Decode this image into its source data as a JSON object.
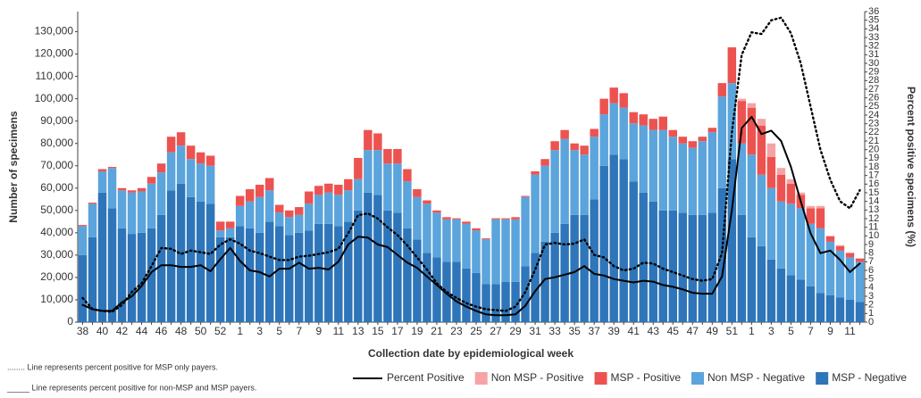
{
  "chart_data": {
    "type": "bar",
    "x_label": "Collection date by epidemiological week",
    "y_label": "Number of specimens",
    "y2_label": "Percent positive specimens (%)",
    "stacked": true,
    "categories": [
      "38",
      null,
      "40",
      null,
      "42",
      null,
      "44",
      null,
      "46",
      null,
      "48",
      null,
      "50",
      null,
      "52",
      null,
      "1",
      null,
      "3",
      null,
      "5",
      null,
      "7",
      null,
      "9",
      null,
      "11",
      null,
      "13",
      null,
      "15",
      null,
      "17",
      null,
      "19",
      null,
      "21",
      null,
      "23",
      null,
      "25",
      null,
      "27",
      null,
      "29",
      null,
      "31",
      null,
      "33",
      null,
      "35",
      null,
      "37",
      null,
      "39",
      null,
      "41",
      null,
      "43",
      null,
      "45",
      null,
      "47",
      null,
      "49",
      null,
      "51",
      null,
      "1",
      null,
      "3",
      null,
      "5",
      null,
      "7",
      null,
      "9",
      null,
      "11",
      null
    ],
    "ylim": [
      0,
      139000
    ],
    "yticks": [
      0,
      {
        "value": 10000,
        "label": "10,000"
      },
      {
        "value": 20000,
        "label": "20,000"
      },
      {
        "value": 30000,
        "label": "30,000"
      },
      {
        "value": 40000,
        "label": "40,000"
      },
      {
        "value": 50000,
        "label": "50,000"
      },
      {
        "value": 60000,
        "label": "60,000"
      },
      {
        "value": 70000,
        "label": "70,000"
      },
      {
        "value": 80000,
        "label": "80,000"
      },
      {
        "value": 90000,
        "label": "90,000"
      },
      {
        "value": 100000,
        "label": "100,000"
      },
      {
        "value": 110000,
        "label": "110,000"
      },
      {
        "value": 120000,
        "label": "120,000"
      },
      {
        "value": 130000,
        "label": "130,000"
      }
    ],
    "y2lim": [
      0,
      36
    ],
    "y2ticks": [
      0,
      1,
      2,
      3,
      4,
      5,
      6,
      7,
      8,
      9,
      10,
      11,
      12,
      13,
      14,
      15,
      16,
      17,
      18,
      19,
      20,
      21,
      22,
      23,
      24,
      25,
      26,
      27,
      28,
      29,
      30,
      31,
      32,
      33,
      34,
      35,
      36
    ],
    "grid": false,
    "series": [
      {
        "name": "MSP - Negative",
        "type": "bar",
        "color": "#2f75b9",
        "values": [
          30000,
          38000,
          58000,
          51000,
          42000,
          39500,
          40000,
          42000,
          48000,
          59000,
          62000,
          56000,
          54000,
          53000,
          38000,
          38000,
          43000,
          42000,
          40000,
          45000,
          43000,
          39000,
          40000,
          41000,
          44000,
          44000,
          43000,
          45000,
          50000,
          58000,
          57000,
          50000,
          49000,
          42000,
          37000,
          31000,
          29000,
          27000,
          27000,
          24000,
          22000,
          17000,
          17000,
          18000,
          18000,
          25000,
          31000,
          36000,
          40000,
          44000,
          48000,
          48000,
          55000,
          70000,
          75000,
          73000,
          63000,
          58000,
          54000,
          50000,
          50000,
          49000,
          48000,
          48000,
          49000,
          60000,
          73000,
          48000,
          38000,
          34000,
          28000,
          24000,
          21000,
          19000,
          16000,
          13000,
          12000,
          11000,
          10000,
          9000
        ]
      },
      {
        "name": "Non MSP - Negative",
        "type": "bar",
        "color": "#5ba4dc",
        "values": [
          13000,
          15000,
          9500,
          18000,
          17000,
          18500,
          18500,
          20000,
          19000,
          17000,
          17000,
          17000,
          17000,
          17000,
          3000,
          4000,
          9000,
          12000,
          16000,
          14000,
          6000,
          8000,
          8000,
          12000,
          13000,
          14000,
          14000,
          14000,
          14000,
          19000,
          20000,
          21000,
          22000,
          21000,
          19000,
          22000,
          20000,
          19000,
          19000,
          20000,
          19000,
          20000,
          29000,
          28000,
          28000,
          31000,
          35000,
          34000,
          37000,
          38000,
          29000,
          27000,
          28000,
          23000,
          23000,
          23000,
          26000,
          30000,
          32000,
          36000,
          33000,
          31000,
          30000,
          33000,
          36000,
          41000,
          34000,
          32000,
          37000,
          32000,
          32000,
          30000,
          32000,
          32000,
          28000,
          29000,
          24000,
          21000,
          19000,
          18000
        ]
      },
      {
        "name": "MSP - Positive",
        "type": "bar",
        "color": "#ec5350",
        "values": [
          500,
          500,
          1000,
          500,
          1000,
          1000,
          1500,
          3000,
          4000,
          7000,
          6000,
          6000,
          5000,
          4500,
          4000,
          3000,
          4500,
          5500,
          5500,
          5500,
          3500,
          3000,
          3500,
          5500,
          4000,
          4000,
          4500,
          5000,
          9500,
          9000,
          7500,
          6500,
          6500,
          5500,
          3500,
          1500,
          1000,
          1000,
          500,
          1000,
          1000,
          500,
          500,
          500,
          1000,
          500,
          1500,
          3000,
          4000,
          4000,
          3000,
          4000,
          3500,
          7000,
          7000,
          6500,
          5000,
          5000,
          5000,
          6000,
          3000,
          3000,
          3000,
          2000,
          2000,
          6000,
          16000,
          19000,
          21000,
          22000,
          14000,
          12000,
          9000,
          6000,
          7000,
          9000,
          2500,
          2000,
          2000,
          1500
        ]
      },
      {
        "name": "Non MSP - Positive",
        "type": "bar",
        "color": "#f5a3a6",
        "values": [
          0,
          0,
          0,
          0,
          0,
          0,
          0,
          0,
          0,
          0,
          0,
          0,
          0,
          0,
          0,
          0,
          0,
          0,
          0,
          0,
          0,
          0,
          0,
          0,
          0,
          0,
          0,
          0,
          0,
          0,
          0,
          0,
          0,
          0,
          0,
          0,
          0,
          0,
          0,
          0,
          0,
          0,
          0,
          0,
          0,
          0,
          0,
          0,
          0,
          0,
          0,
          0,
          0,
          0,
          0,
          0,
          0,
          0,
          0,
          0,
          0,
          0,
          0,
          0,
          0,
          0,
          0,
          1000,
          2000,
          3000,
          6000,
          3000,
          2000,
          1000,
          1000,
          1000,
          0,
          500,
          0,
          0
        ]
      },
      {
        "name": "Percent Positive",
        "type": "line",
        "axis": "y2",
        "color": "#000000",
        "dash": "solid",
        "values": [
          2,
          1.5,
          1.3,
          1.3,
          2.3,
          3,
          4.2,
          5.8,
          6.6,
          6.6,
          6.4,
          6.4,
          6.6,
          5.9,
          7.3,
          8.6,
          7.1,
          6,
          5.8,
          5.3,
          6.2,
          6.2,
          6.9,
          6.2,
          6.3,
          6.1,
          7,
          9,
          9.9,
          9.8,
          9,
          8.7,
          7.8,
          6.9,
          6.3,
          5.3,
          4.3,
          3.3,
          2.4,
          1.8,
          1.3,
          0.9,
          0.8,
          0.8,
          0.9,
          1.9,
          3.6,
          5,
          5.2,
          5.5,
          5.8,
          6.5,
          5.6,
          5.4,
          5,
          4.8,
          4.6,
          4.8,
          4.7,
          4.3,
          4.1,
          3.8,
          3.4,
          3.3,
          3.3,
          5.3,
          13,
          22.5,
          23.8,
          21.8,
          22.2,
          21,
          18,
          14,
          10.3,
          8,
          8.3,
          7.2,
          5.8,
          6.8
        ]
      },
      {
        "type": "line",
        "axis": "y2",
        "color": "#000000",
        "dash": "dotted",
        "values": [
          2.8,
          1.5,
          1.3,
          1.2,
          2,
          3.5,
          4.5,
          6.5,
          8.6,
          8.5,
          7.9,
          8.3,
          8.1,
          7.9,
          9,
          9.6,
          9.1,
          8.3,
          8,
          7.6,
          7.2,
          7.2,
          7.6,
          7.7,
          7.9,
          8.1,
          8.5,
          10.3,
          12.4,
          12.6,
          12,
          11,
          10.1,
          8.9,
          7.5,
          6.1,
          4.5,
          3.5,
          2.8,
          2.2,
          1.8,
          1.5,
          1.4,
          1.3,
          1.8,
          3.5,
          6.1,
          9,
          9.2,
          9,
          9.1,
          9.6,
          7.8,
          7.5,
          6.5,
          6,
          6.2,
          6.9,
          6.8,
          6.2,
          5.8,
          5.4,
          5,
          4.8,
          5,
          8,
          22,
          31,
          33.6,
          33.4,
          35,
          35.3,
          33.5,
          30,
          25,
          20,
          16.5,
          14,
          13.2,
          15.3
        ]
      }
    ],
    "legend_order": [
      4,
      3,
      2,
      1,
      0
    ],
    "notes": [
      "........ Line represents percent positive for MSP only payers.",
      "_____ Line represents percent positive for non-MSP and MSP payers."
    ]
  }
}
